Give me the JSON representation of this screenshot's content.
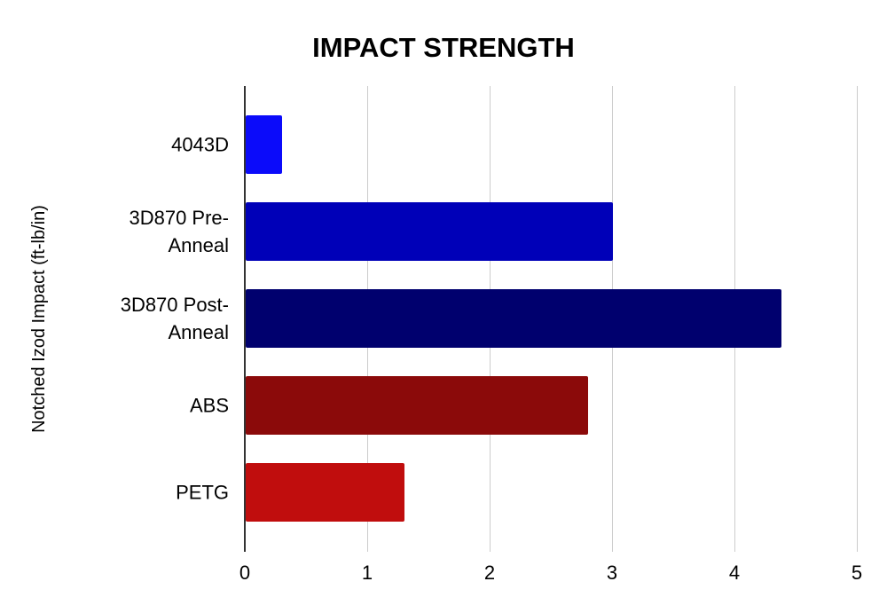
{
  "chart_data": {
    "type": "bar",
    "orientation": "horizontal",
    "title": "IMPACT STRENGTH",
    "xlabel": "",
    "ylabel": "Notched Izod Impact (ft-lb/in)",
    "categories": [
      "4043D",
      "3D870 Pre-Anneal",
      "3D870 Post-Anneal",
      "ABS",
      "PETG"
    ],
    "values": [
      0.3,
      3.0,
      4.38,
      2.8,
      1.3
    ],
    "bar_colors": [
      "#0b0bfa",
      "#0000b8",
      "#00006e",
      "#8b0a0a",
      "#c00d0d"
    ],
    "xlim": [
      0,
      5
    ],
    "xticks": [
      0,
      1,
      2,
      3,
      4,
      5
    ],
    "grid": true,
    "legend": "none",
    "gridline_color": "#cccccc",
    "axis_line_color": "#333333",
    "background_color": "#ffffff"
  }
}
